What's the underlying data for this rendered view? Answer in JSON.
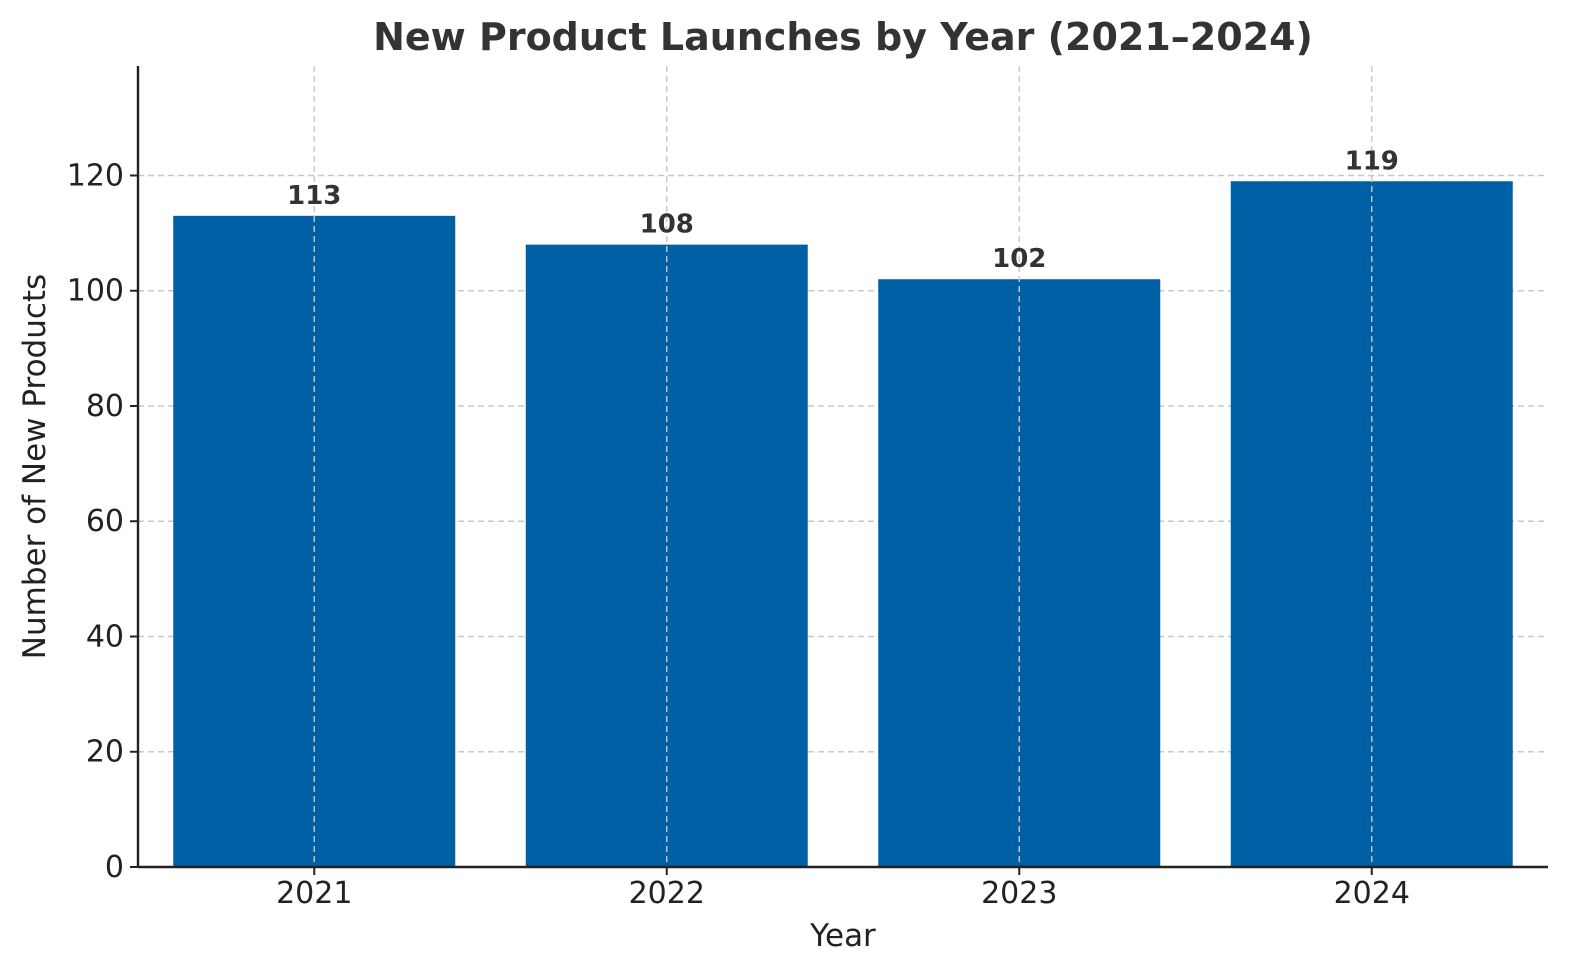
{
  "chart_data": {
    "type": "bar",
    "title": "New Product Launches by Year (2021–2024)",
    "xlabel": "Year",
    "ylabel": "Number of New Products",
    "categories": [
      "2021",
      "2022",
      "2023",
      "2024"
    ],
    "values": [
      113,
      108,
      102,
      119
    ],
    "data_labels": [
      "113",
      "108",
      "102",
      "119"
    ],
    "ylim": [
      0,
      139
    ],
    "yticks": [
      0,
      20,
      40,
      60,
      80,
      100,
      120
    ],
    "ytick_labels": [
      "0",
      "20",
      "40",
      "60",
      "80",
      "100",
      "120"
    ],
    "grid": true,
    "bar_color": "#0060a6",
    "legend": "none"
  }
}
